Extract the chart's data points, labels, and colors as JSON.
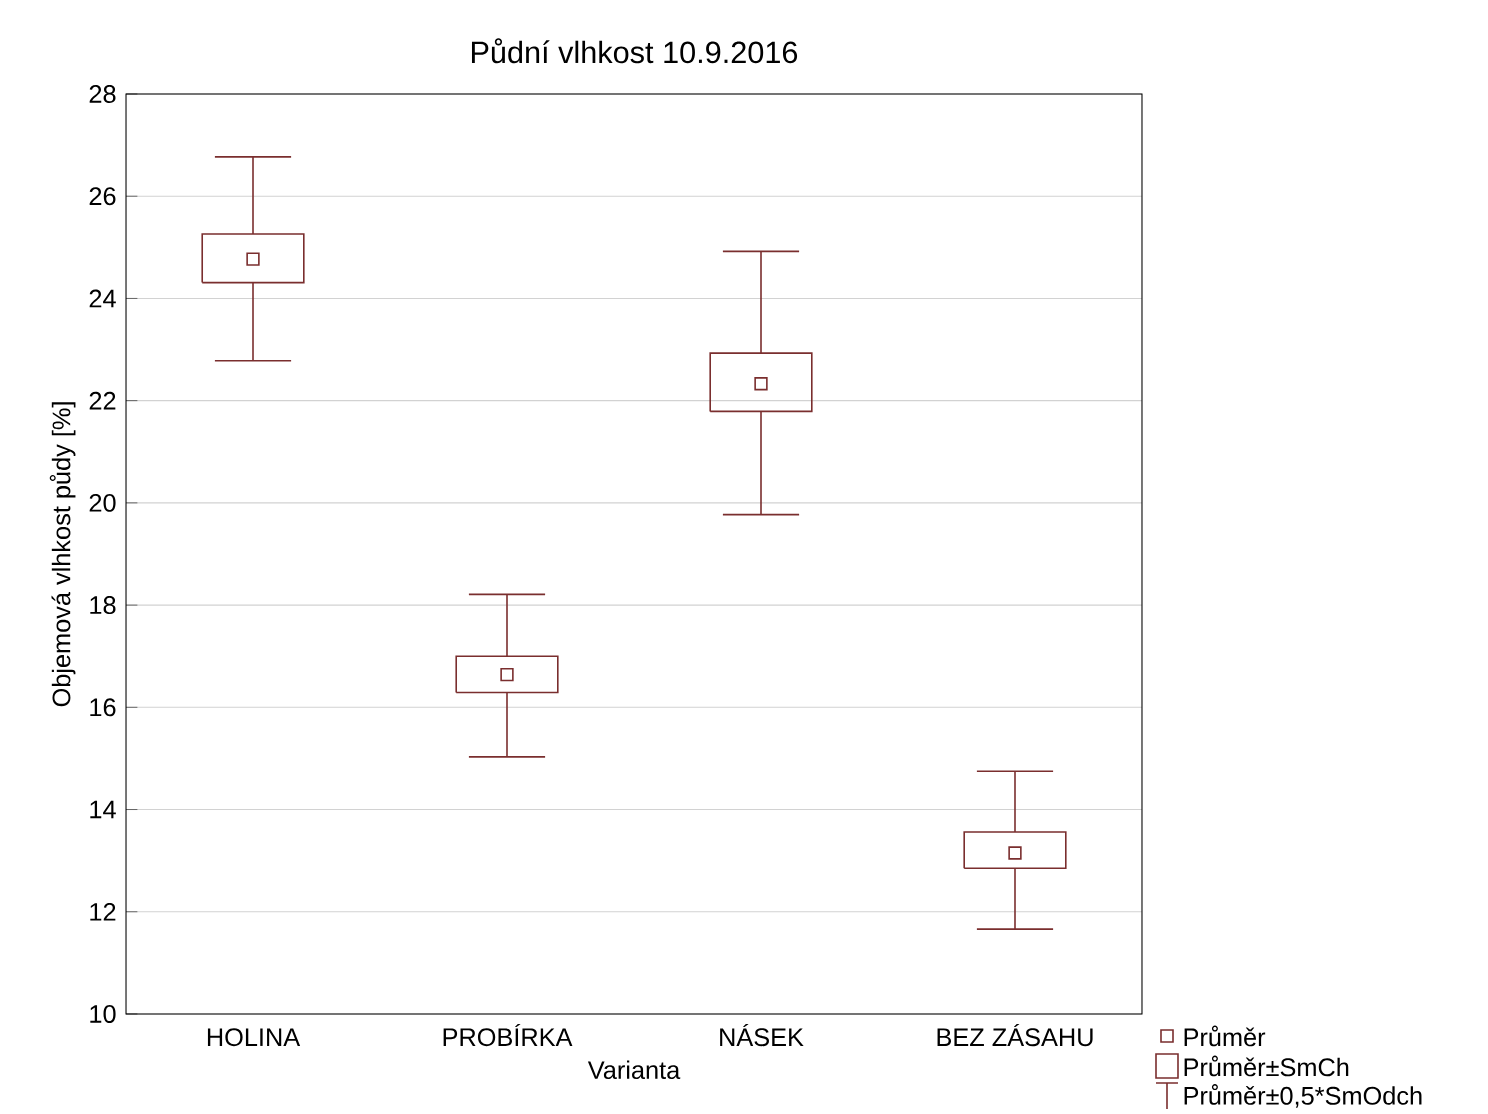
{
  "chart_data": {
    "type": "box",
    "title": "Půdní vlhkost 10.9.2016",
    "xlabel": "Varianta",
    "ylabel": "Objemová vlhkost půdy [%]",
    "categories": [
      "HOLINA",
      "PROBÍRKA",
      "NÁSEK",
      "BEZ ZÁSAHU"
    ],
    "color": "#7a2e2e",
    "boxes": [
      {
        "low": 22.78,
        "q1": 24.31,
        "q3": 25.26,
        "high": 26.77,
        "mean": 24.77
      },
      {
        "low": 15.03,
        "q1": 16.29,
        "q3": 17.0,
        "high": 18.21,
        "mean": 16.64
      },
      {
        "low": 19.77,
        "q1": 21.79,
        "q3": 22.93,
        "high": 24.92,
        "mean": 22.33
      },
      {
        "low": 11.66,
        "q1": 12.85,
        "q3": 13.56,
        "high": 14.75,
        "mean": 13.15
      }
    ],
    "ylim": [
      10,
      28
    ],
    "yticks": [
      10,
      12,
      14,
      16,
      18,
      20,
      22,
      24,
      26,
      28
    ],
    "grid": "y",
    "annotations": [
      "Průměr",
      "Průměr±SmCh",
      "Průměr±0,5*SmOdch"
    ]
  }
}
